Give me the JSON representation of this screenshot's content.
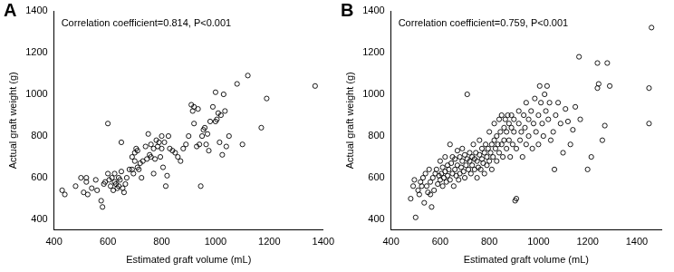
{
  "chart_data": [
    {
      "type": "scatter",
      "title": "A",
      "annotation": "Correlation coefficient=0.814, P<0.001",
      "x_label": "Estimated graft volume (mL)",
      "y_label": "Actual graft weight (g)",
      "xlim": [
        400,
        1400
      ],
      "xticks": [
        400,
        600,
        800,
        1000,
        1200,
        1400
      ],
      "ylim": [
        350,
        1400
      ],
      "yticks": [
        400,
        600,
        800,
        1000,
        1200,
        1400
      ],
      "grid": false,
      "color": "#000000",
      "marker": "open_circle",
      "x": [
        430,
        440,
        480,
        500,
        510,
        520,
        520,
        525,
        540,
        555,
        560,
        575,
        580,
        585,
        590,
        600,
        600,
        605,
        610,
        615,
        620,
        625,
        625,
        630,
        635,
        640,
        640,
        645,
        650,
        650,
        655,
        660,
        665,
        670,
        680,
        690,
        690,
        695,
        700,
        700,
        705,
        710,
        710,
        715,
        720,
        725,
        730,
        740,
        745,
        750,
        755,
        760,
        760,
        770,
        770,
        775,
        780,
        785,
        790,
        795,
        800,
        800,
        805,
        810,
        815,
        820,
        825,
        830,
        840,
        850,
        860,
        870,
        880,
        890,
        900,
        910,
        915,
        920,
        920,
        930,
        935,
        940,
        945,
        950,
        955,
        960,
        965,
        970,
        975,
        980,
        990,
        1000,
        1000,
        1005,
        1010,
        1015,
        1020,
        1025,
        1030,
        1035,
        1040,
        1050,
        1080,
        1100,
        1120,
        1170,
        1190,
        1370
      ],
      "values": [
        540,
        520,
        560,
        600,
        530,
        580,
        600,
        520,
        550,
        590,
        540,
        490,
        460,
        570,
        580,
        860,
        620,
        590,
        560,
        600,
        540,
        620,
        580,
        570,
        550,
        560,
        600,
        590,
        770,
        630,
        550,
        530,
        570,
        600,
        640,
        700,
        640,
        620,
        680,
        720,
        740,
        730,
        650,
        640,
        670,
        600,
        680,
        750,
        690,
        810,
        710,
        760,
        700,
        740,
        620,
        690,
        780,
        750,
        770,
        700,
        800,
        740,
        650,
        770,
        560,
        610,
        800,
        740,
        730,
        720,
        700,
        680,
        740,
        760,
        800,
        950,
        920,
        940,
        860,
        750,
        930,
        760,
        560,
        800,
        830,
        840,
        760,
        810,
        730,
        870,
        940,
        870,
        1010,
        880,
        910,
        770,
        900,
        710,
        1000,
        920,
        750,
        800,
        1050,
        760,
        1090,
        840,
        980,
        1040
      ]
    },
    {
      "type": "scatter",
      "title": "B",
      "annotation": "Correlation coefficient=0.759, P<0.001",
      "x_label": "Estimated graft volume (mL)",
      "y_label": "Actual graft weight (g)",
      "xlim": [
        400,
        1500
      ],
      "xticks": [
        400,
        600,
        800,
        1000,
        1200,
        1400
      ],
      "ylim": [
        350,
        1400
      ],
      "yticks": [
        400,
        600,
        800,
        1000,
        1200,
        1400
      ],
      "grid": false,
      "color": "#000000",
      "marker": "open_circle",
      "x": [
        480,
        490,
        495,
        500,
        510,
        515,
        520,
        525,
        530,
        535,
        540,
        545,
        550,
        555,
        560,
        565,
        560,
        570,
        575,
        580,
        585,
        590,
        595,
        600,
        600,
        605,
        610,
        610,
        615,
        620,
        620,
        625,
        630,
        630,
        635,
        640,
        640,
        645,
        650,
        650,
        655,
        660,
        660,
        665,
        670,
        670,
        675,
        680,
        680,
        685,
        690,
        690,
        695,
        700,
        700,
        705,
        710,
        710,
        715,
        720,
        720,
        725,
        730,
        730,
        735,
        740,
        740,
        745,
        750,
        750,
        755,
        760,
        760,
        765,
        770,
        770,
        775,
        780,
        780,
        785,
        790,
        790,
        795,
        800,
        800,
        805,
        810,
        810,
        815,
        820,
        820,
        825,
        830,
        830,
        835,
        840,
        840,
        845,
        850,
        850,
        855,
        860,
        860,
        865,
        870,
        870,
        875,
        880,
        880,
        885,
        890,
        890,
        895,
        900,
        900,
        905,
        910,
        910,
        920,
        920,
        925,
        930,
        935,
        940,
        945,
        950,
        950,
        960,
        960,
        970,
        975,
        980,
        985,
        990,
        1000,
        1000,
        1005,
        1010,
        1015,
        1020,
        1025,
        1030,
        1035,
        1040,
        1045,
        1050,
        1060,
        1065,
        1070,
        1080,
        1090,
        1100,
        1110,
        1120,
        1130,
        1140,
        1150,
        1165,
        1170,
        1200,
        1215,
        1240,
        1240,
        1245,
        1260,
        1270,
        1280,
        1290,
        1450,
        1450,
        1460
      ],
      "values": [
        500,
        560,
        590,
        410,
        540,
        520,
        580,
        560,
        600,
        480,
        620,
        560,
        530,
        640,
        580,
        460,
        520,
        600,
        540,
        620,
        640,
        570,
        610,
        680,
        590,
        620,
        560,
        650,
        600,
        700,
        630,
        580,
        660,
        610,
        640,
        760,
        590,
        670,
        620,
        700,
        560,
        640,
        690,
        610,
        730,
        660,
        590,
        620,
        700,
        650,
        680,
        740,
        630,
        600,
        710,
        660,
        690,
        1000,
        640,
        720,
        680,
        620,
        700,
        660,
        760,
        640,
        690,
        720,
        600,
        680,
        650,
        710,
        780,
        640,
        690,
        740,
        670,
        620,
        720,
        760,
        700,
        660,
        740,
        680,
        820,
        720,
        760,
        640,
        700,
        780,
        860,
        740,
        680,
        800,
        760,
        880,
        720,
        820,
        760,
        900,
        700,
        840,
        780,
        880,
        740,
        820,
        900,
        860,
        780,
        700,
        840,
        900,
        760,
        820,
        880,
        490,
        500,
        740,
        860,
        920,
        780,
        820,
        700,
        900,
        840,
        760,
        960,
        880,
        800,
        920,
        740,
        860,
        980,
        820,
        900,
        760,
        1040,
        960,
        860,
        800,
        1000,
        920,
        1040,
        880,
        960,
        780,
        820,
        640,
        900,
        960,
        860,
        720,
        930,
        870,
        760,
        830,
        940,
        1180,
        880,
        640,
        700,
        1150,
        1030,
        1050,
        780,
        850,
        1150,
        1040,
        1030,
        860,
        1320
      ]
    }
  ]
}
